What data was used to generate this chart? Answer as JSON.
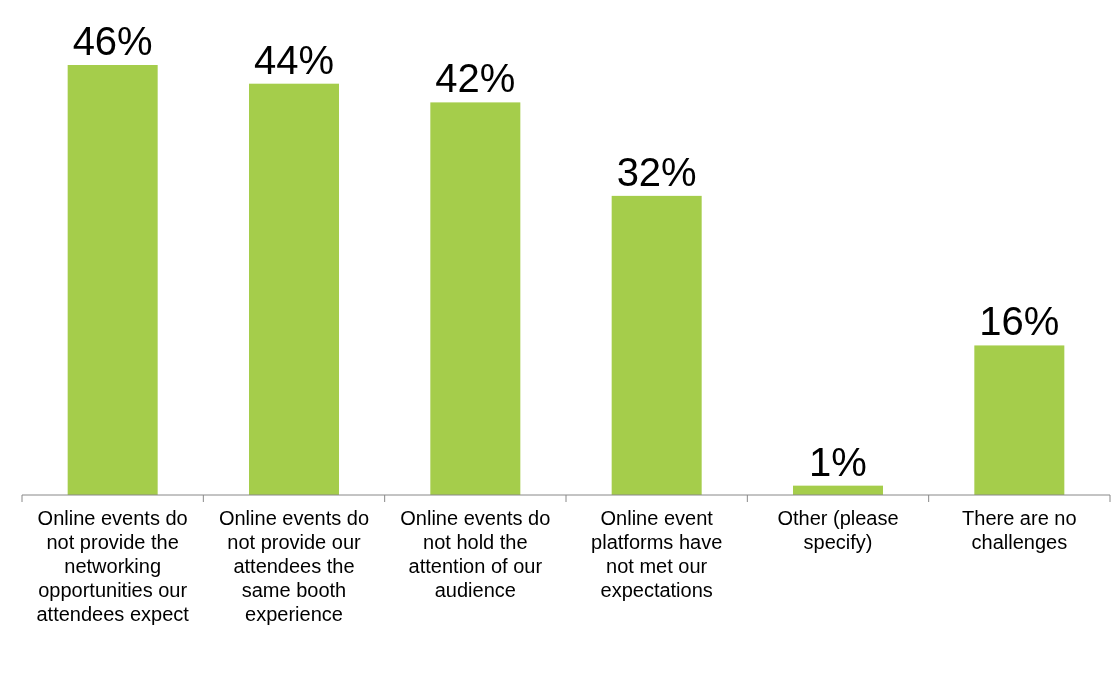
{
  "chart_data": {
    "type": "bar",
    "categories": [
      "Online events do not provide the networking opportunities our attendees expect",
      "Online events do not provide our attendees the same booth experience",
      "Online events do not hold the attention of our audience",
      "Online event platforms have not met our expectations",
      "Other (please specify)",
      "There are no challenges"
    ],
    "values": [
      46,
      44,
      42,
      32,
      1,
      16
    ],
    "color": "#a5cd4b",
    "data_labels": true,
    "value_labels": [
      "46%",
      "44%",
      "42%",
      "32%",
      "1%",
      "16%"
    ]
  }
}
